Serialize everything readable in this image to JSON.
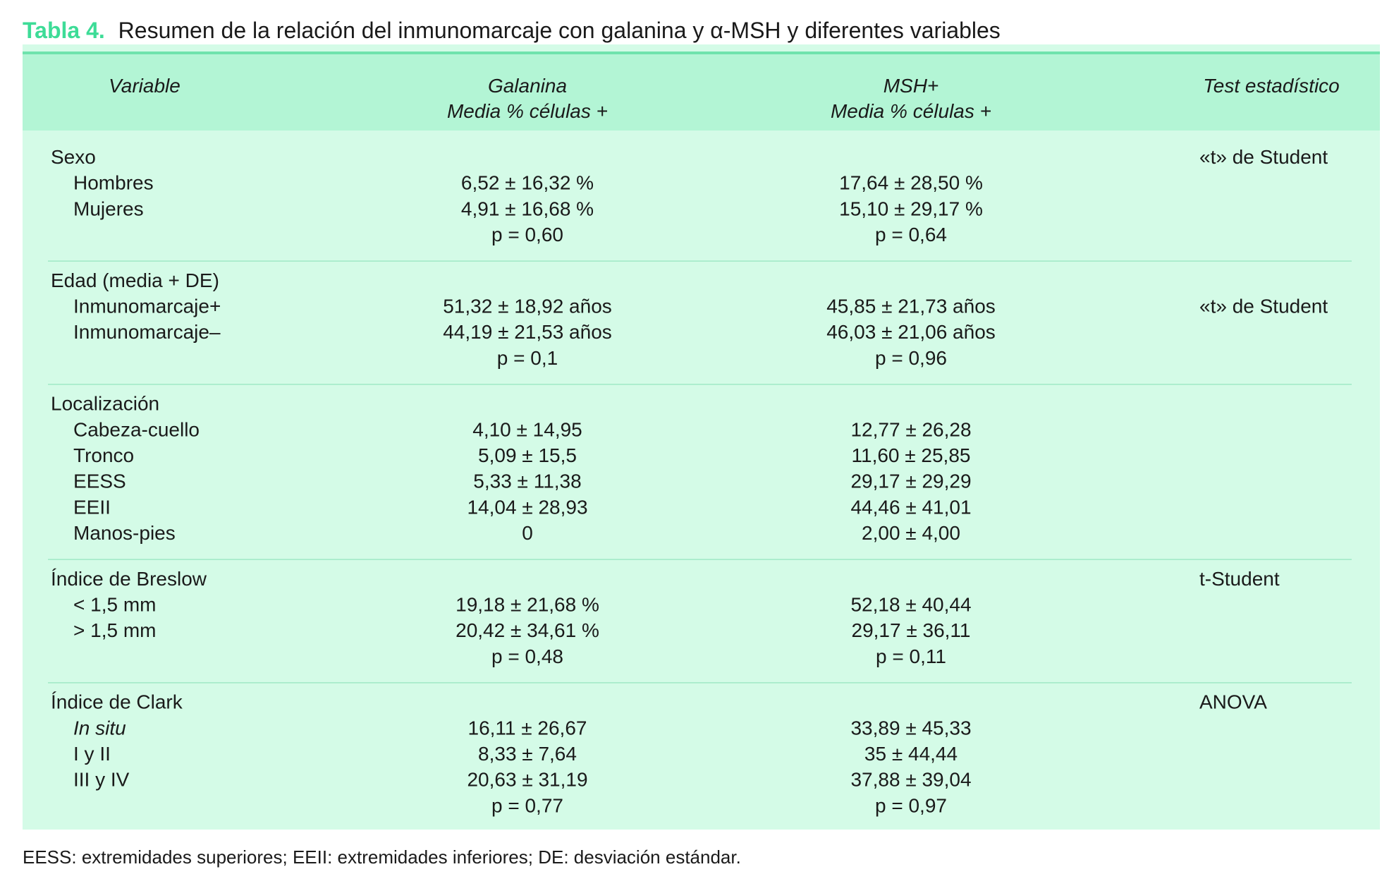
{
  "title": {
    "label": "Tabla 4.",
    "text": "Resumen de la relación del inmunomarcaje con galanina y α-MSH y diferentes variables"
  },
  "table": {
    "columns": [
      {
        "lines": [
          "Variable"
        ]
      },
      {
        "lines": [
          "Galanina",
          "Media % células +"
        ]
      },
      {
        "lines": [
          "MSH+",
          "Media % células +"
        ]
      },
      {
        "lines": [
          "Test estadístico"
        ]
      }
    ],
    "groups": [
      {
        "name": "Sexo",
        "test": "«t» de Student",
        "rows": [
          {
            "label": "Hombres",
            "galanina": "6,52 ± 16,32 %",
            "msh": "17,64 ± 28,50 %"
          },
          {
            "label": "Mujeres",
            "galanina": "4,91 ± 16,68 %",
            "msh": "15,10 ± 29,17 %"
          }
        ],
        "p": {
          "galanina": "p = 0,60",
          "msh": "p = 0,64"
        }
      },
      {
        "name": "Edad (media + DE)",
        "rows": [
          {
            "label": "Inmunomarcaje+",
            "galanina": "51,32 ± 18,92 años",
            "msh": "45,85 ± 21,73 años",
            "test": "«t» de Student"
          },
          {
            "label": "Inmunomarcaje–",
            "galanina": "44,19 ± 21,53 años",
            "msh": "46,03 ± 21,06 años"
          }
        ],
        "p": {
          "galanina": "p = 0,1",
          "msh": "p = 0,96"
        }
      },
      {
        "name": "Localización",
        "rows": [
          {
            "label": "Cabeza-cuello",
            "galanina": "4,10 ± 14,95",
            "msh": "12,77 ± 26,28"
          },
          {
            "label": "Tronco",
            "galanina": "5,09 ± 15,5",
            "msh": "11,60 ± 25,85"
          },
          {
            "label": "EESS",
            "galanina": "5,33 ± 11,38",
            "msh": "29,17 ± 29,29"
          },
          {
            "label": "EEII",
            "galanina": "14,04 ± 28,93",
            "msh": "44,46 ± 41,01"
          },
          {
            "label": "Manos-pies",
            "galanina": "0",
            "msh": "2,00 ± 4,00"
          }
        ]
      },
      {
        "name": "Índice de Breslow",
        "test": "t-Student",
        "rows": [
          {
            "label": "< 1,5 mm",
            "galanina": "19,18 ± 21,68 %",
            "msh": "52,18 ± 40,44"
          },
          {
            "label": "> 1,5 mm",
            "galanina": "20,42 ± 34,61 %",
            "msh": "29,17 ± 36,11"
          }
        ],
        "p": {
          "galanina": "p = 0,48",
          "msh": "p = 0,11"
        }
      },
      {
        "name": "Índice de Clark",
        "test": "ANOVA",
        "rows": [
          {
            "label": "In situ",
            "italic": true,
            "galanina": "16,11 ± 26,67",
            "msh": "33,89 ± 45,33"
          },
          {
            "label": "I y II",
            "galanina": "8,33 ± 7,64",
            "msh": "35 ± 44,44"
          },
          {
            "label": "III y IV",
            "galanina": "20,63 ± 31,19",
            "msh": "37,88 ± 39,04"
          }
        ],
        "p": {
          "galanina": "p = 0,77",
          "msh": "p = 0,97"
        }
      }
    ]
  },
  "footnote": "EESS: extremidades superiores; EEII: extremidades inferiores; DE: desviación estándar."
}
